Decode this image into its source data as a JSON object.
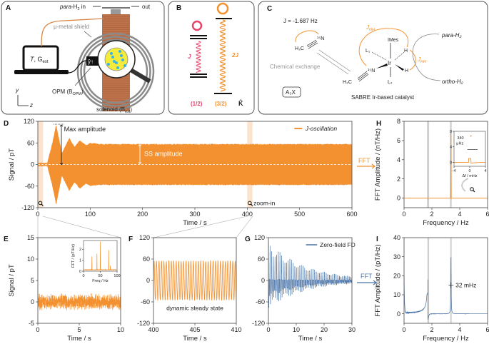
{
  "colors": {
    "orange": "#F39130",
    "blue": "#4A74A8",
    "pink": "#E8456B",
    "gray_band": "#CFCFCF",
    "copper": "#B3663F",
    "highlight": "#FBE3CE"
  },
  "panels": {
    "A": {
      "label": "A",
      "para_prefix": "para",
      "para_suffix": "-H",
      "para_sub": "2",
      "para_in": " in",
      "out": "out",
      "shield": "μ-metal shield",
      "laptop_T": "T",
      "laptop_G": ", G",
      "laptop_G_sub": "ext",
      "opm": "OPM (B",
      "opm_sub": "OPM",
      "opm_close": ")",
      "solenoid": "solenoid (B",
      "solenoid_sub": "ext",
      "solenoid_close": ")",
      "sensor_axis": "ŷ↑",
      "axis_y": "y",
      "axis_z": "z"
    },
    "B": {
      "label": "B",
      "j_left": "J",
      "j_right": "2J",
      "k_left": "(1/2)",
      "k_right": "(3/2)",
      "k_symbol": "K̂"
    },
    "C": {
      "label": "C",
      "coupling": "J = -1.687 Hz",
      "h3c": "H₃C",
      "n15": "¹⁵N",
      "exchange": "Chemical exchange",
      "spin_system": "A₃X",
      "imes": "IMes",
      "l1": "L₁",
      "l2": "L₂",
      "ir": "Ir",
      "h": "H",
      "j_nh": "J",
      "j_nh_sub": "NH",
      "j_hh": "J",
      "j_hh_sub": "HH",
      "para_h2": "para-H₂",
      "ortho_h2": "ortho-H₂",
      "catalyst": "SABRE Ir-based catalyst"
    },
    "D": {
      "label": "D"
    },
    "E": {
      "label": "E"
    },
    "F": {
      "label": "F"
    },
    "G": {
      "label": "G"
    },
    "H": {
      "label": "H"
    },
    "I": {
      "label": "I"
    }
  },
  "fft_arrows": {
    "orange": "FFT",
    "blue": "FFT"
  },
  "chart_data": [
    {
      "id": "D",
      "type": "area",
      "xlabel": "Time / s",
      "ylabel": "Signal / pT",
      "xlim": [
        0,
        600
      ],
      "ylim": [
        -120,
        120
      ],
      "xticks": [
        "0",
        "100",
        "200",
        "300",
        "400",
        "500",
        "600"
      ],
      "yticks": [
        "-120",
        "-60",
        "0",
        "60",
        "120"
      ],
      "legend": {
        "entries": [
          "J-oscillation"
        ],
        "position": "top-right"
      },
      "series": [
        {
          "name": "J-oscillation",
          "color": "#F39130",
          "envelope": [
            [
              0,
              3
            ],
            [
              18,
              3
            ],
            [
              28,
              60
            ],
            [
              35,
              110
            ],
            [
              46,
              30
            ],
            [
              60,
              72
            ],
            [
              70,
              48
            ],
            [
              80,
              65
            ],
            [
              92,
              52
            ],
            [
              100,
              58
            ],
            [
              120,
              55
            ],
            [
              600,
              55
            ]
          ]
        }
      ],
      "highlights": [
        [
          0,
          10
        ],
        [
          400,
          410
        ]
      ],
      "annotations": [
        "Max amplitude",
        "SS amplitude",
        "zoom-in"
      ]
    },
    {
      "id": "H",
      "type": "line",
      "xlabel": "Frequency / Hz",
      "ylabel": "FFT Amplitude / (nT/Hz)",
      "xlim": [
        0,
        6
      ],
      "ylim": [
        -1,
        8
      ],
      "xticks": [
        "0",
        "2",
        "4",
        "6"
      ],
      "yticks": [
        "0",
        "2",
        "4",
        "6",
        "8"
      ],
      "bands": [
        [
          1.65,
          1.8
        ],
        [
          3.3,
          3.42
        ]
      ],
      "peaks": [
        {
          "x": 3.37,
          "y": 6.8
        }
      ],
      "color": "#F39130"
    },
    {
      "id": "H-inset",
      "type": "line",
      "xlabel": "Δf / mHz",
      "ylabel": "",
      "xlim": [
        -4,
        4
      ],
      "ylim": [
        -1,
        8
      ],
      "xticks": [
        "-4",
        "0",
        "4"
      ],
      "yticks": [
        "0",
        "4",
        "8"
      ],
      "peaks": [
        {
          "x": 0.3,
          "y": 6.8
        }
      ],
      "annotations": [
        "340",
        "μHz"
      ]
    },
    {
      "id": "E",
      "type": "line",
      "xlabel": "Time / s",
      "ylabel": "Signal / pT",
      "xlim": [
        0,
        10
      ],
      "ylim": [
        -5,
        15
      ],
      "xticks": [
        "0",
        "5",
        "10"
      ],
      "yticks": [
        "-5",
        "0",
        "5",
        "10",
        "15"
      ],
      "noise_amplitude": 3,
      "color": "#F39130"
    },
    {
      "id": "E-inset",
      "type": "line",
      "xlabel": "Freq / Hz",
      "ylabel": "FFT / (pT/Hz)",
      "xlim": [
        0,
        100
      ],
      "ylim": [
        0,
        2.8
      ],
      "xticks": [
        "0",
        "50",
        "100"
      ],
      "yticks": [
        "0",
        "1",
        "2"
      ],
      "peaks": [
        {
          "x": 25,
          "y": 1.35
        },
        {
          "x": 40,
          "y": 1.6
        },
        {
          "x": 50,
          "y": 2.7
        },
        {
          "x": 75,
          "y": 1.95
        },
        {
          "x": 80,
          "y": 0.5
        }
      ]
    },
    {
      "id": "F",
      "type": "line",
      "xlabel": "Time / s",
      "ylabel": "",
      "xlim": [
        400,
        410
      ],
      "ylim": [
        -120,
        120
      ],
      "xticks": [
        "400",
        "405",
        "410"
      ],
      "yticks": [
        "-120",
        "-60",
        "0",
        "60",
        "120"
      ],
      "amplitude": 55,
      "frequency_hz": 3.37,
      "annotations": [
        "dynamic steady state"
      ],
      "color": "#F39130"
    },
    {
      "id": "G",
      "type": "line",
      "xlabel": "Time / s",
      "ylabel": "",
      "xlim": [
        0,
        30
      ],
      "ylim": [
        -120,
        120
      ],
      "xticks": [
        "0",
        "10",
        "20",
        "30"
      ],
      "yticks": [
        "-120",
        "-60",
        "0",
        "60",
        "120"
      ],
      "legend": {
        "entries": [
          "Zero-field FD"
        ],
        "position": "top-right"
      },
      "initial_amplitude": 110,
      "color": "#4A74A8"
    },
    {
      "id": "I",
      "type": "line",
      "xlabel": "Frequency / Hz",
      "ylabel": "FFT Amplitude / (pT/Hz)",
      "xlim": [
        0,
        6
      ],
      "ylim": [
        -5,
        40
      ],
      "xticks": [
        "0",
        "2",
        "4",
        "6"
      ],
      "yticks": [
        "0",
        "10",
        "20",
        "30",
        "40"
      ],
      "bands": [
        [
          1.68,
          1.8
        ],
        [
          3.32,
          3.42
        ]
      ],
      "peaks": [
        {
          "x": 1.72,
          "y": 18
        },
        {
          "x": 3.37,
          "y": 30
        }
      ],
      "annotations": [
        "32 mHz"
      ],
      "color": "#4A74A8"
    }
  ]
}
